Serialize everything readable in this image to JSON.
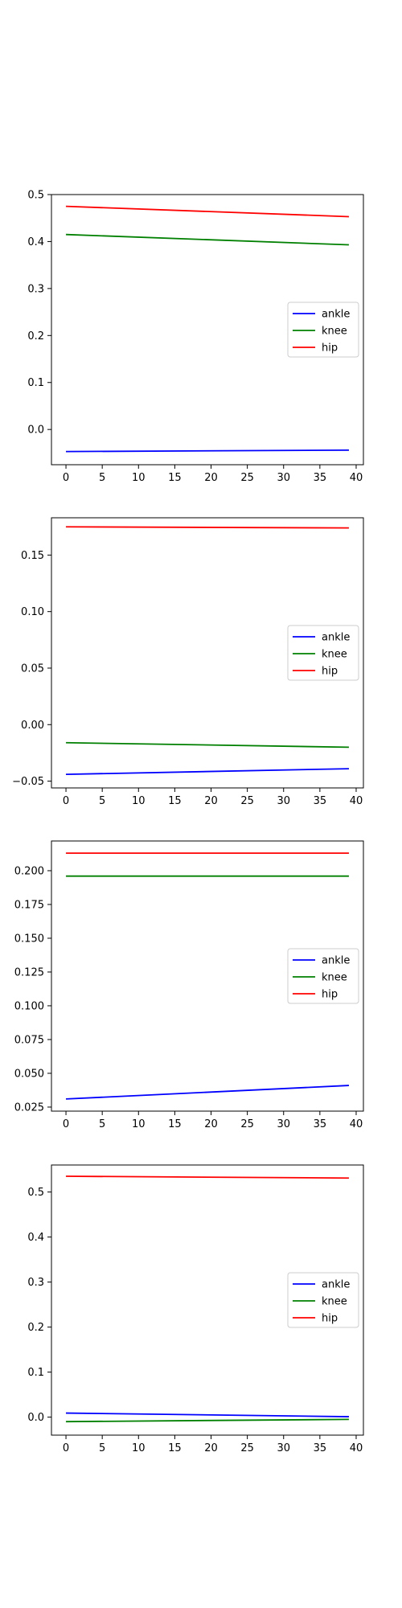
{
  "colors": {
    "ankle": "#0000ff",
    "knee": "#008000",
    "hip": "#ff0000"
  },
  "chart_data": [
    {
      "type": "line",
      "xlim": [
        -2,
        41
      ],
      "ylim": [
        -0.075,
        0.5
      ],
      "xticks": [
        0,
        5,
        10,
        15,
        20,
        25,
        30,
        35,
        40
      ],
      "yticks": [
        0.0,
        0.1,
        0.2,
        0.3,
        0.4,
        0.5
      ],
      "ytick_labels": [
        "0.0",
        "0.1",
        "0.2",
        "0.3",
        "0.4",
        "0.5"
      ],
      "legend": "center-right",
      "grid": false,
      "series": [
        {
          "name": "ankle",
          "color": "#0000ff",
          "start": [
            0,
            -0.047
          ],
          "end": [
            39,
            -0.044
          ]
        },
        {
          "name": "knee",
          "color": "#008000",
          "start": [
            0,
            0.415
          ],
          "end": [
            39,
            0.393
          ]
        },
        {
          "name": "hip",
          "color": "#ff0000",
          "start": [
            0,
            0.475
          ],
          "end": [
            39,
            0.453
          ]
        }
      ]
    },
    {
      "type": "line",
      "xlim": [
        -2,
        41
      ],
      "ylim": [
        -0.056,
        0.183
      ],
      "xticks": [
        0,
        5,
        10,
        15,
        20,
        25,
        30,
        35,
        40
      ],
      "yticks": [
        -0.05,
        0.0,
        0.05,
        0.1,
        0.15
      ],
      "ytick_labels": [
        "−0.05",
        "0.00",
        "0.05",
        "0.10",
        "0.15"
      ],
      "legend": "center-right",
      "grid": false,
      "series": [
        {
          "name": "ankle",
          "color": "#0000ff",
          "start": [
            0,
            -0.044
          ],
          "end": [
            39,
            -0.039
          ]
        },
        {
          "name": "knee",
          "color": "#008000",
          "start": [
            0,
            -0.016
          ],
          "end": [
            39,
            -0.02
          ]
        },
        {
          "name": "hip",
          "color": "#ff0000",
          "start": [
            0,
            0.175
          ],
          "end": [
            39,
            0.174
          ]
        }
      ]
    },
    {
      "type": "line",
      "xlim": [
        -2,
        41
      ],
      "ylim": [
        0.022,
        0.222
      ],
      "xticks": [
        0,
        5,
        10,
        15,
        20,
        25,
        30,
        35,
        40
      ],
      "yticks": [
        0.025,
        0.05,
        0.075,
        0.1,
        0.125,
        0.15,
        0.175,
        0.2
      ],
      "ytick_labels": [
        "0.025",
        "0.050",
        "0.075",
        "0.100",
        "0.125",
        "0.150",
        "0.175",
        "0.200"
      ],
      "legend": "center-right",
      "grid": false,
      "series": [
        {
          "name": "ankle",
          "color": "#0000ff",
          "start": [
            0,
            0.031
          ],
          "end": [
            39,
            0.041
          ]
        },
        {
          "name": "knee",
          "color": "#008000",
          "start": [
            0,
            0.196
          ],
          "end": [
            39,
            0.196
          ]
        },
        {
          "name": "hip",
          "color": "#ff0000",
          "start": [
            0,
            0.213
          ],
          "end": [
            39,
            0.213
          ]
        }
      ]
    },
    {
      "type": "line",
      "xlim": [
        -2,
        41
      ],
      "ylim": [
        -0.04,
        0.56
      ],
      "xticks": [
        0,
        5,
        10,
        15,
        20,
        25,
        30,
        35,
        40
      ],
      "yticks": [
        0.0,
        0.1,
        0.2,
        0.3,
        0.4,
        0.5
      ],
      "ytick_labels": [
        "0.0",
        "0.1",
        "0.2",
        "0.3",
        "0.4",
        "0.5"
      ],
      "legend": "center-right",
      "grid": false,
      "series": [
        {
          "name": "ankle",
          "color": "#0000ff",
          "start": [
            0,
            0.009
          ],
          "end": [
            39,
            0.001
          ]
        },
        {
          "name": "knee",
          "color": "#008000",
          "start": [
            0,
            -0.01
          ],
          "end": [
            39,
            -0.005
          ]
        },
        {
          "name": "hip",
          "color": "#ff0000",
          "start": [
            0,
            0.535
          ],
          "end": [
            39,
            0.531
          ]
        }
      ]
    }
  ]
}
